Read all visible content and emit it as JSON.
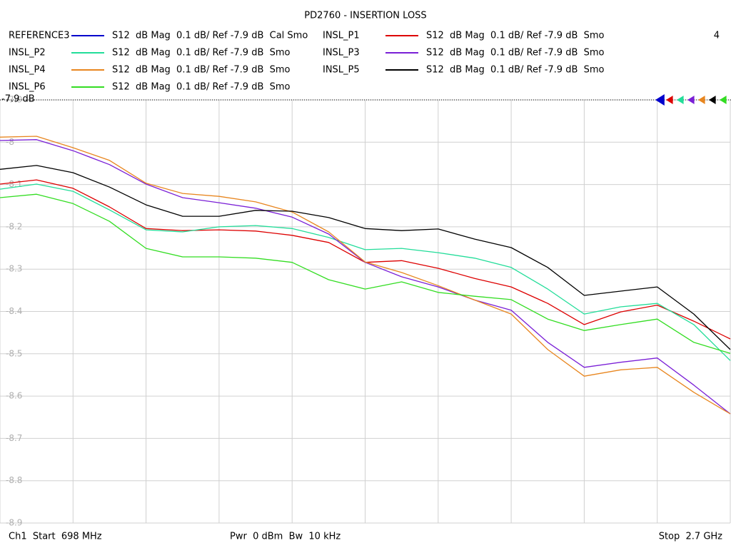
{
  "chart_data": {
    "type": "line",
    "title": "PD2760 - INSERTION LOSS",
    "channel_number": "4",
    "reference_label": "-7.9 dB",
    "footer": {
      "start": "Ch1  Start  698 MHz",
      "center": "Pwr  0 dBm  Bw  10 kHz",
      "stop": "Stop  2.7 GHz"
    },
    "x": [
      698,
      798.1,
      898.2,
      998.3,
      1098.4,
      1198.5,
      1298.6,
      1398.7,
      1498.8,
      1598.9,
      1699,
      1799.1,
      1899.2,
      1999.3,
      2099.4,
      2199.5,
      2299.6,
      2399.7,
      2499.8,
      2599.9,
      2700
    ],
    "xlim": [
      698,
      2700
    ],
    "xticks": [
      698,
      898.2,
      1098.4,
      1298.6,
      1498.8,
      1699,
      1899.2,
      2099.4,
      2299.6,
      2499.8,
      2700
    ],
    "ylim": [
      -8.9,
      -7.9
    ],
    "yticks": [
      -7.9,
      -8,
      -8.1,
      -8.2,
      -8.3,
      -8.4,
      -8.5,
      -8.6,
      -8.7,
      -8.8,
      -8.9
    ],
    "grid": true,
    "series": [
      {
        "name": "REFERENCE3",
        "description": "S12  dB Mag  0.1 dB/ Ref -7.9 dB  Cal Smo",
        "color": "#0000cc",
        "values": [
          null,
          null,
          null,
          null,
          null,
          null,
          null,
          null,
          null,
          null,
          null,
          null,
          null,
          null,
          null,
          null,
          null,
          null,
          null,
          null,
          null
        ]
      },
      {
        "name": "INSL_P1",
        "description": "S12  dB Mag  0.1 dB/ Ref -7.9 dB  Smo",
        "color": "#dd0000",
        "values": [
          -8.099,
          -8.089,
          -8.109,
          -8.153,
          -8.204,
          -8.209,
          -8.207,
          -8.21,
          -8.22,
          -8.237,
          -8.284,
          -8.28,
          -8.298,
          -8.322,
          -8.342,
          -8.381,
          -8.431,
          -8.401,
          -8.385,
          -8.423,
          -8.465
        ]
      },
      {
        "name": "INSL_P2",
        "description": "S12  dB Mag  0.1 dB/ Ref -7.9 dB  Smo",
        "color": "#22dd99",
        "values": [
          -8.111,
          -8.099,
          -8.116,
          -8.16,
          -8.207,
          -8.212,
          -8.2,
          -8.197,
          -8.204,
          -8.225,
          -8.254,
          -8.251,
          -8.261,
          -8.274,
          -8.296,
          -8.347,
          -8.406,
          -8.389,
          -8.381,
          -8.431,
          -8.516
        ]
      },
      {
        "name": "INSL_P3",
        "description": "S12  dB Mag  0.1 dB/ Ref -7.9 dB  Smo",
        "color": "#7a1fd6",
        "values": [
          -7.996,
          -7.994,
          -8.02,
          -8.053,
          -8.099,
          -8.131,
          -8.143,
          -8.156,
          -8.177,
          -8.217,
          -8.284,
          -8.318,
          -8.342,
          -8.373,
          -8.397,
          -8.473,
          -8.532,
          -8.52,
          -8.51,
          -8.574,
          -8.642
        ]
      },
      {
        "name": "INSL_P4",
        "description": "S12  dB Mag  0.1 dB/ Ref -7.9 dB  Smo",
        "color": "#e8861f",
        "values": [
          -7.988,
          -7.986,
          -8.013,
          -8.043,
          -8.097,
          -8.121,
          -8.128,
          -8.141,
          -8.165,
          -8.212,
          -8.283,
          -8.308,
          -8.339,
          -8.373,
          -8.406,
          -8.49,
          -8.553,
          -8.538,
          -8.532,
          -8.591,
          -8.642
        ]
      },
      {
        "name": "INSL_P5",
        "description": "S12  dB Mag  0.1 dB/ Ref -7.9 dB  Smo",
        "color": "#000000",
        "values": [
          -8.064,
          -8.055,
          -8.072,
          -8.106,
          -8.148,
          -8.175,
          -8.175,
          -8.161,
          -8.163,
          -8.178,
          -8.204,
          -8.209,
          -8.205,
          -8.229,
          -8.249,
          -8.296,
          -8.362,
          -8.352,
          -8.342,
          -8.406,
          -8.49
        ]
      },
      {
        "name": "INSL_P6",
        "description": "S12  dB Mag  0.1 dB/ Ref -7.9 dB  Smo",
        "color": "#33dd22",
        "values": [
          -8.131,
          -8.123,
          -8.145,
          -8.187,
          -8.251,
          -8.271,
          -8.271,
          -8.274,
          -8.284,
          -8.325,
          -8.347,
          -8.33,
          -8.355,
          -8.364,
          -8.372,
          -8.418,
          -8.445,
          -8.431,
          -8.418,
          -8.473,
          -8.499
        ]
      }
    ]
  }
}
